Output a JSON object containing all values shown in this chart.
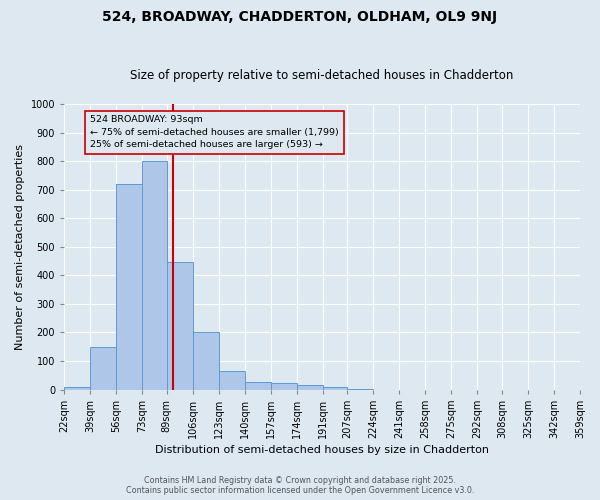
{
  "title": "524, BROADWAY, CHADDERTON, OLDHAM, OL9 9NJ",
  "subtitle": "Size of property relative to semi-detached houses in Chadderton",
  "xlabel": "Distribution of semi-detached houses by size in Chadderton",
  "ylabel": "Number of semi-detached properties",
  "footer_line1": "Contains HM Land Registry data © Crown copyright and database right 2025.",
  "footer_line2": "Contains public sector information licensed under the Open Government Licence v3.0.",
  "bins": [
    22,
    39,
    56,
    73,
    89,
    106,
    123,
    140,
    157,
    174,
    191,
    207,
    224,
    241,
    258,
    275,
    292,
    308,
    325,
    342,
    359
  ],
  "counts": [
    10,
    148,
    720,
    800,
    445,
    200,
    65,
    27,
    22,
    15,
    8,
    3,
    0,
    0,
    0,
    0,
    0,
    0,
    0,
    0
  ],
  "bar_color": "#aec6e8",
  "bar_edge_color": "#5b9bd5",
  "vline_x": 93,
  "vline_color": "#cc0000",
  "annotation_text": "524 BROADWAY: 93sqm\n← 75% of semi-detached houses are smaller (1,799)\n25% of semi-detached houses are larger (593) →",
  "annotation_box_edgecolor": "#cc0000",
  "ylim": [
    0,
    1000
  ],
  "yticks": [
    0,
    100,
    200,
    300,
    400,
    500,
    600,
    700,
    800,
    900,
    1000
  ],
  "background_color": "#dde8f0",
  "grid_color": "#ffffff",
  "title_fontsize": 10,
  "subtitle_fontsize": 8.5,
  "tick_label_size": 7,
  "axis_label_fontsize": 8,
  "footer_fontsize": 5.8
}
